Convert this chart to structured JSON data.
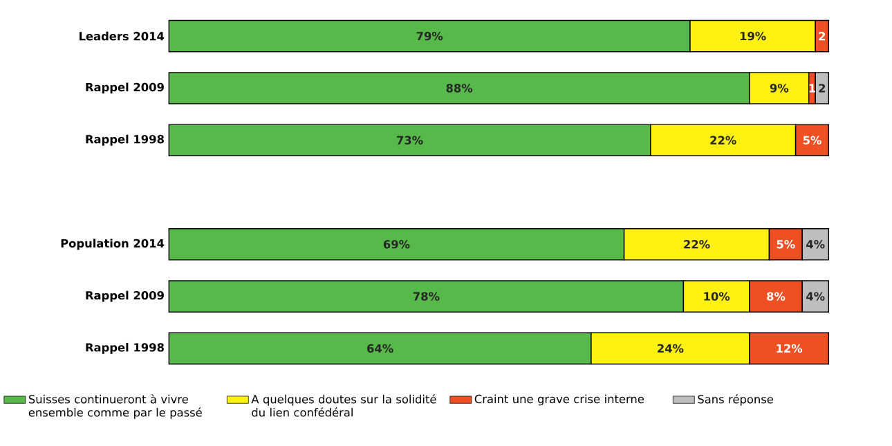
{
  "chart_data": {
    "type": "bar",
    "orientation": "horizontal",
    "stacked": true,
    "legend": "bottom",
    "categories": [
      "Leaders 2014",
      "Rappel 2009",
      "Rappel 1998",
      null,
      "Population 2014",
      "Rappel 2009",
      "Rappel 1998"
    ],
    "series": [
      {
        "name": "Suisses continueront à vivre ensemble comme par le passé",
        "color": "#56b94a",
        "values": [
          79,
          88,
          73,
          null,
          69,
          78,
          64
        ],
        "value_labels": [
          "79%",
          "88%",
          "73%",
          null,
          "69%",
          "78%",
          "64%"
        ]
      },
      {
        "name": "A quelques doutes sur la solidité du lien confédéral",
        "color": "#fff212",
        "values": [
          19,
          9,
          22,
          null,
          22,
          10,
          24
        ],
        "value_labels": [
          "19%",
          "9%",
          "22%",
          null,
          "22%",
          "10%",
          "24%"
        ]
      },
      {
        "name": "Craint une grave crise interne",
        "color": "#ef5023",
        "values": [
          2,
          1,
          5,
          null,
          5,
          8,
          12
        ],
        "value_labels": [
          "2",
          "1",
          "5%",
          null,
          "5%",
          "8%",
          "12%"
        ]
      },
      {
        "name": "Sans réponse",
        "color": "#bcbec0",
        "values": [
          null,
          2,
          null,
          null,
          4,
          4,
          null
        ],
        "value_labels": [
          null,
          "2",
          null,
          null,
          "4%",
          "4%",
          null
        ]
      }
    ]
  }
}
